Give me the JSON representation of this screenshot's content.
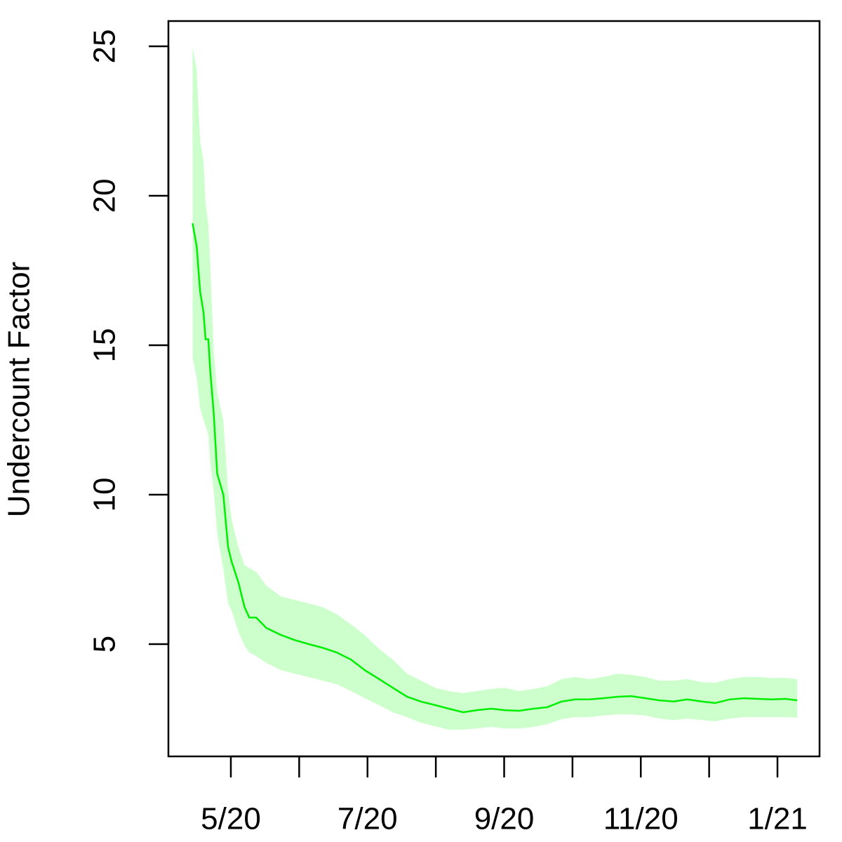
{
  "chart_data": {
    "type": "line",
    "ylabel": "Undercount Factor",
    "x": [
      4.44,
      4.5,
      4.55,
      4.6,
      4.63,
      4.67,
      4.7,
      4.75,
      4.8,
      4.89,
      4.96,
      5.01,
      5.11,
      5.2,
      5.27,
      5.37,
      5.52,
      5.73,
      5.93,
      6.14,
      6.34,
      6.55,
      6.76,
      6.96,
      7.17,
      7.37,
      7.58,
      7.78,
      7.99,
      8.19,
      8.4,
      8.6,
      8.81,
      9.01,
      9.22,
      9.43,
      9.63,
      9.84,
      10.04,
      10.25,
      10.45,
      10.66,
      10.86,
      11.07,
      11.27,
      11.48,
      11.68,
      11.89,
      12.09,
      12.3,
      12.51,
      12.71,
      12.92,
      13.12,
      13.29
    ],
    "values": [
      19.08,
      18.3,
      16.8,
      16.1,
      15.2,
      15.2,
      14.1,
      12.7,
      10.7,
      10.0,
      8.24,
      7.77,
      7.07,
      6.24,
      5.89,
      5.89,
      5.54,
      5.31,
      5.14,
      5.0,
      4.88,
      4.72,
      4.48,
      4.13,
      3.83,
      3.54,
      3.24,
      3.08,
      2.96,
      2.84,
      2.72,
      2.79,
      2.84,
      2.79,
      2.77,
      2.84,
      2.89,
      3.08,
      3.15,
      3.15,
      3.19,
      3.24,
      3.26,
      3.19,
      3.12,
      3.08,
      3.15,
      3.08,
      3.03,
      3.15,
      3.19,
      3.17,
      3.15,
      3.17,
      3.12
    ],
    "lower": [
      14.58,
      13.9,
      12.9,
      12.5,
      12.3,
      12.0,
      11.05,
      10.1,
      8.7,
      7.5,
      6.36,
      6.13,
      5.42,
      4.95,
      4.72,
      4.6,
      4.37,
      4.13,
      4.01,
      3.9,
      3.78,
      3.66,
      3.43,
      3.19,
      2.96,
      2.72,
      2.56,
      2.37,
      2.25,
      2.14,
      2.14,
      2.18,
      2.23,
      2.18,
      2.18,
      2.23,
      2.32,
      2.49,
      2.56,
      2.56,
      2.61,
      2.65,
      2.65,
      2.61,
      2.51,
      2.46,
      2.51,
      2.46,
      2.42,
      2.51,
      2.56,
      2.56,
      2.56,
      2.56,
      2.54
    ],
    "upper": [
      25.0,
      24.2,
      21.85,
      21.15,
      19.74,
      19.04,
      17.6,
      14.8,
      13.4,
      12.5,
      10.1,
      9.2,
      8.24,
      7.65,
      7.54,
      7.42,
      6.95,
      6.6,
      6.48,
      6.36,
      6.24,
      6.0,
      5.66,
      5.3,
      4.84,
      4.48,
      4.01,
      3.78,
      3.54,
      3.43,
      3.36,
      3.43,
      3.5,
      3.54,
      3.43,
      3.5,
      3.59,
      3.83,
      3.9,
      3.83,
      3.9,
      4.01,
      3.97,
      3.9,
      3.78,
      3.78,
      3.83,
      3.73,
      3.71,
      3.83,
      3.9,
      3.9,
      3.87,
      3.87,
      3.83
    ],
    "color": "#00ee00",
    "band_color": "#ccffcc",
    "xlim": [
      4.086,
      13.616
    ],
    "ylim": [
      1.244,
      25.845
    ],
    "xticks": [
      {
        "value": 5,
        "label": "5/20"
      },
      {
        "value": 6,
        "label": null
      },
      {
        "value": 7,
        "label": "7/20"
      },
      {
        "value": 8,
        "label": null
      },
      {
        "value": 9,
        "label": "9/20"
      },
      {
        "value": 10,
        "label": null
      },
      {
        "value": 11,
        "label": "11/20"
      },
      {
        "value": 12,
        "label": null
      },
      {
        "value": 13,
        "label": "1/21"
      }
    ],
    "yticks": [
      5,
      10,
      15,
      20,
      25
    ]
  }
}
